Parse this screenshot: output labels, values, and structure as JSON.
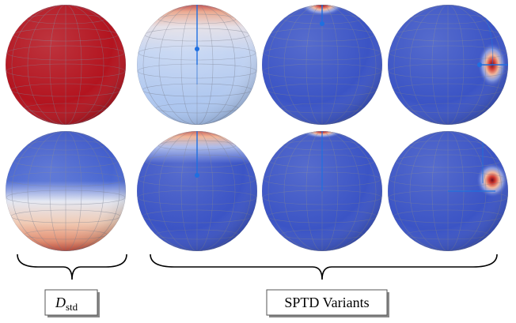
{
  "labels": {
    "left": {
      "symbol": "D",
      "subscript": "std"
    },
    "right": "SPTD Variants"
  }
}
